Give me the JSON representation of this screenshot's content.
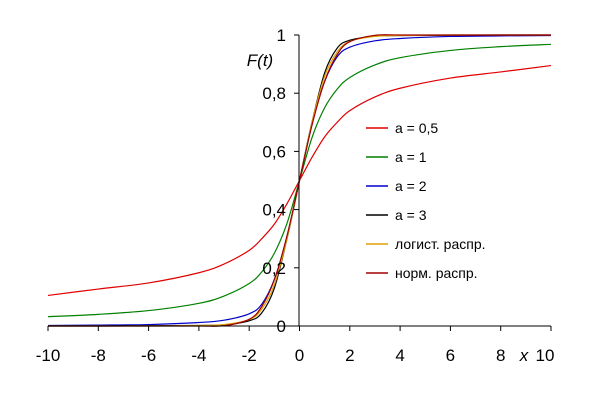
{
  "chart_data": {
    "type": "line",
    "title": "",
    "xlabel": "x",
    "ylabel": "F(t)",
    "xlim": [
      -10,
      10
    ],
    "ylim": [
      0,
      1
    ],
    "xticks": [
      "-10",
      "-8",
      "-6",
      "-4",
      "-2",
      "0",
      "2",
      "4",
      "6",
      "8",
      "10"
    ],
    "yticks": [
      "0",
      "0,2",
      "0,4",
      "0,6",
      "0,8",
      "1"
    ],
    "grid": false,
    "legend_position": "right",
    "x": [
      -10,
      -8,
      -6,
      -4,
      -3,
      -2,
      -1.5,
      -1,
      -0.5,
      0,
      0.5,
      1,
      1.5,
      2,
      3,
      4,
      6,
      8,
      10
    ],
    "series": [
      {
        "name": "a = 0,5",
        "color": "#e00000",
        "values": [
          0.105,
          0.127,
          0.148,
          0.183,
          0.213,
          0.26,
          0.3,
          0.35,
          0.42,
          0.5,
          0.58,
          0.65,
          0.7,
          0.74,
          0.787,
          0.817,
          0.852,
          0.873,
          0.895
        ]
      },
      {
        "name": "a = 1",
        "color": "#008000",
        "values": [
          0.032,
          0.04,
          0.053,
          0.078,
          0.103,
          0.146,
          0.186,
          0.25,
          0.352,
          0.5,
          0.648,
          0.75,
          0.814,
          0.854,
          0.897,
          0.922,
          0.947,
          0.96,
          0.968
        ]
      },
      {
        "name": "a = 2",
        "color": "#0000cc",
        "values": [
          0.002,
          0.003,
          0.005,
          0.012,
          0.02,
          0.042,
          0.075,
          0.16,
          0.3,
          0.5,
          0.7,
          0.84,
          0.925,
          0.958,
          0.98,
          0.988,
          0.995,
          0.997,
          0.998
        ]
      },
      {
        "name": "a = 3",
        "color": "#000000",
        "values": [
          0.0,
          0.0,
          0.001,
          0.002,
          0.004,
          0.018,
          0.045,
          0.13,
          0.3,
          0.5,
          0.7,
          0.87,
          0.955,
          0.982,
          0.996,
          0.998,
          0.999,
          1.0,
          1.0
        ]
      },
      {
        "name": "логист. распр.",
        "color": "#e0a000",
        "values": [
          0.0,
          0.0,
          0.0,
          0.002,
          0.005,
          0.022,
          0.058,
          0.142,
          0.3,
          0.5,
          0.7,
          0.858,
          0.942,
          0.978,
          0.995,
          0.998,
          1.0,
          1.0,
          1.0
        ]
      },
      {
        "name": "норм. распр.",
        "color": "#a00000",
        "values": [
          0.0,
          0.0,
          0.0,
          0.0,
          0.001,
          0.023,
          0.067,
          0.159,
          0.309,
          0.5,
          0.691,
          0.841,
          0.933,
          0.977,
          0.999,
          1.0,
          1.0,
          1.0,
          1.0
        ]
      }
    ]
  }
}
